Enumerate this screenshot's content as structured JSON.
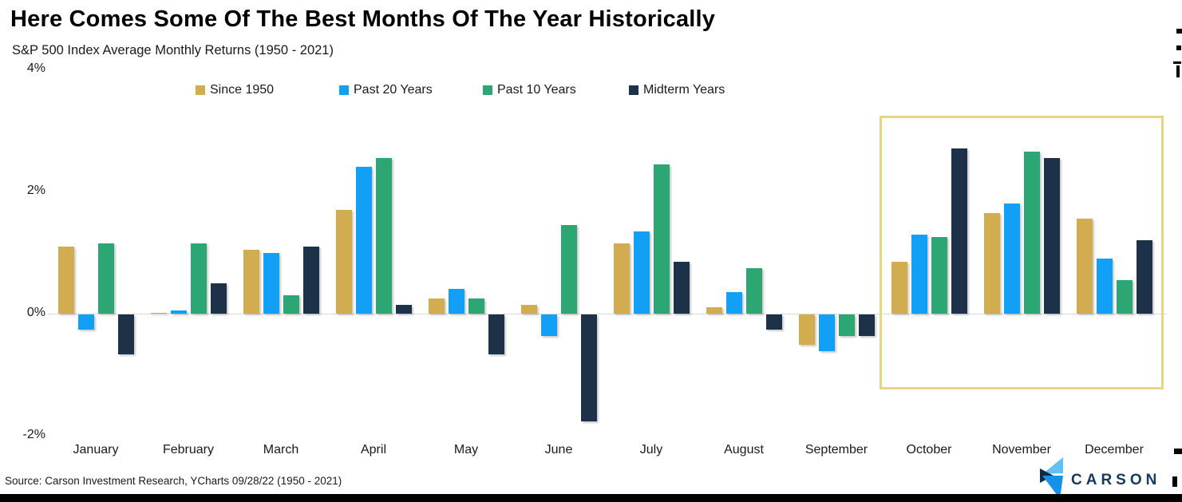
{
  "title": "Here Comes Some Of The Best Months Of The Year Historically",
  "subtitle": "S&P 500 Index Average Monthly Returns (1950 - 2021)",
  "source": "Source: Carson Investment Research, YCharts 09/28/22 (1950 - 2021)",
  "logo": {
    "text": "CARSON"
  },
  "colors": {
    "gold": "#d2ad50",
    "blue": "#12a0f7",
    "green": "#2ca673",
    "navy": "#1d3148",
    "highlight_box": "#ead585",
    "axis_line": "#d9d9d9",
    "bottom_bar": "#000000",
    "logo_light_blue": "#63c0f2",
    "logo_mid_blue": "#1591e8",
    "logo_navy": "#0d2b45",
    "logo_text": "#17395c"
  },
  "chart_data": {
    "type": "bar",
    "title": "Here Comes Some Of The Best Months Of The Year Historically",
    "subtitle": "S&P 500 Index Average Monthly Returns (1950 - 2021)",
    "categories": [
      "January",
      "February",
      "March",
      "April",
      "May",
      "June",
      "July",
      "August",
      "September",
      "October",
      "November",
      "December"
    ],
    "series": [
      {
        "name": "Since 1950",
        "color_key": "gold",
        "values": [
          1.1,
          0.0,
          1.05,
          1.7,
          0.25,
          0.15,
          1.15,
          0.1,
          -0.5,
          0.85,
          1.65,
          1.55
        ]
      },
      {
        "name": "Past 20 Years",
        "color_key": "blue",
        "values": [
          -0.25,
          0.05,
          1.0,
          2.4,
          0.4,
          -0.35,
          1.35,
          0.35,
          -0.6,
          1.3,
          1.8,
          0.9
        ]
      },
      {
        "name": "Past 10 Years",
        "color_key": "green",
        "values": [
          1.15,
          1.15,
          0.3,
          2.55,
          0.25,
          1.45,
          2.45,
          0.75,
          -0.35,
          1.25,
          2.65,
          0.55
        ]
      },
      {
        "name": "Midterm Years",
        "color_key": "navy",
        "values": [
          -0.65,
          0.5,
          1.1,
          0.15,
          -0.65,
          -1.75,
          0.85,
          -0.25,
          -0.35,
          2.7,
          2.55,
          1.2
        ]
      }
    ],
    "y_ticks": [
      {
        "label": "4%",
        "value": 4
      },
      {
        "label": "2%",
        "value": 2
      },
      {
        "label": "0%",
        "value": 0
      },
      {
        "label": "-2%",
        "value": -2
      }
    ],
    "ylim": [
      -2.4,
      4
    ],
    "unit": "percent",
    "grid": false,
    "legend_position": "top",
    "highlight": {
      "months": [
        "October",
        "November",
        "December"
      ]
    }
  }
}
